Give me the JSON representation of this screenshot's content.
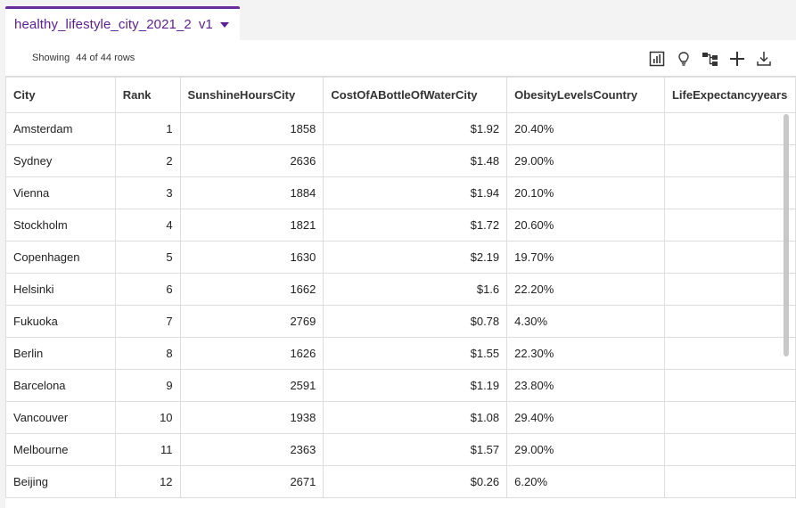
{
  "tab": {
    "title": "healthy_lifestyle_city_2021_2",
    "version": "v1"
  },
  "toolbar": {
    "status_label": "Showing",
    "status_count": "44 of 44 rows"
  },
  "icons": [
    "chart-icon",
    "lightbulb-icon",
    "lineage-icon",
    "add-icon",
    "download-icon"
  ],
  "table": {
    "columns": [
      "City",
      "Rank",
      "SunshineHoursCity",
      "CostOfABottleOfWaterCity",
      "ObesityLevelsCountry",
      "LifeExpectancyyears"
    ],
    "rows": [
      [
        "Amsterdam",
        "1",
        "1858",
        "$1.92",
        "20.40%",
        ""
      ],
      [
        "Sydney",
        "2",
        "2636",
        "$1.48",
        "29.00%",
        ""
      ],
      [
        "Vienna",
        "3",
        "1884",
        "$1.94",
        "20.10%",
        ""
      ],
      [
        "Stockholm",
        "4",
        "1821",
        "$1.72",
        "20.60%",
        ""
      ],
      [
        "Copenhagen",
        "5",
        "1630",
        "$2.19",
        "19.70%",
        ""
      ],
      [
        "Helsinki",
        "6",
        "1662",
        "$1.6",
        "22.20%",
        ""
      ],
      [
        "Fukuoka",
        "7",
        "2769",
        "$0.78",
        "4.30%",
        ""
      ],
      [
        "Berlin",
        "8",
        "1626",
        "$1.55",
        "22.30%",
        ""
      ],
      [
        "Barcelona",
        "9",
        "2591",
        "$1.19",
        "23.80%",
        ""
      ],
      [
        "Vancouver",
        "10",
        "1938",
        "$1.08",
        "29.40%",
        ""
      ],
      [
        "Melbourne",
        "11",
        "2363",
        "$1.57",
        "29.00%",
        ""
      ],
      [
        "Beijing",
        "12",
        "2671",
        "$0.26",
        "6.20%",
        ""
      ]
    ]
  },
  "colors": {
    "accent": "#6a2c9c"
  }
}
